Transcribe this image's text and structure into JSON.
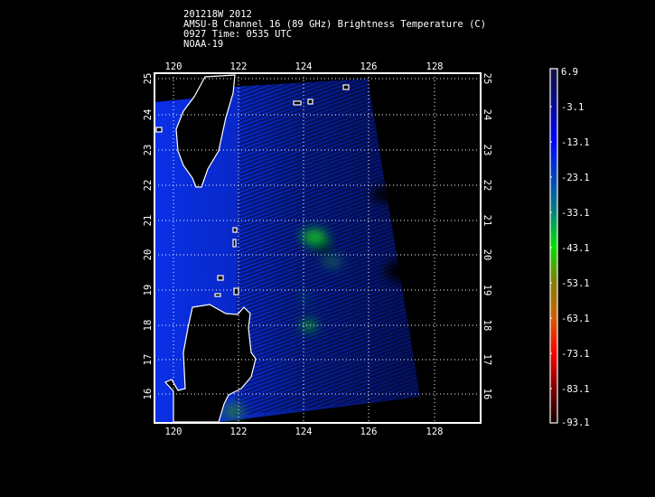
{
  "header": {
    "line1": "201218W 2012",
    "line2": "AMSU-B Channel 16 (89 GHz) Brightness Temperature (C)",
    "line3": "0927 Time: 0535 UTC",
    "line4": "NOAA-19"
  },
  "map": {
    "lon_labels": [
      "120",
      "122",
      "124",
      "126",
      "128"
    ],
    "lat_labels": [
      "25",
      "24",
      "23",
      "22",
      "21",
      "20",
      "19",
      "18",
      "17",
      "16"
    ],
    "grid": "dotted",
    "land_color": "#000000",
    "coastline_color": "#ffffff"
  },
  "colorbar": {
    "labels": [
      "6.9",
      "-3.1",
      "-13.1",
      "-23.1",
      "-33.1",
      "-43.1",
      "-53.1",
      "-63.1",
      "-73.1",
      "-83.1",
      "-93.1"
    ],
    "colors": [
      "#10103a",
      "#0a0a90",
      "#0000ff",
      "#0040c0",
      "#008080",
      "#00e000",
      "#808000",
      "#d06000",
      "#ff0000",
      "#800000",
      "#100000"
    ]
  }
}
